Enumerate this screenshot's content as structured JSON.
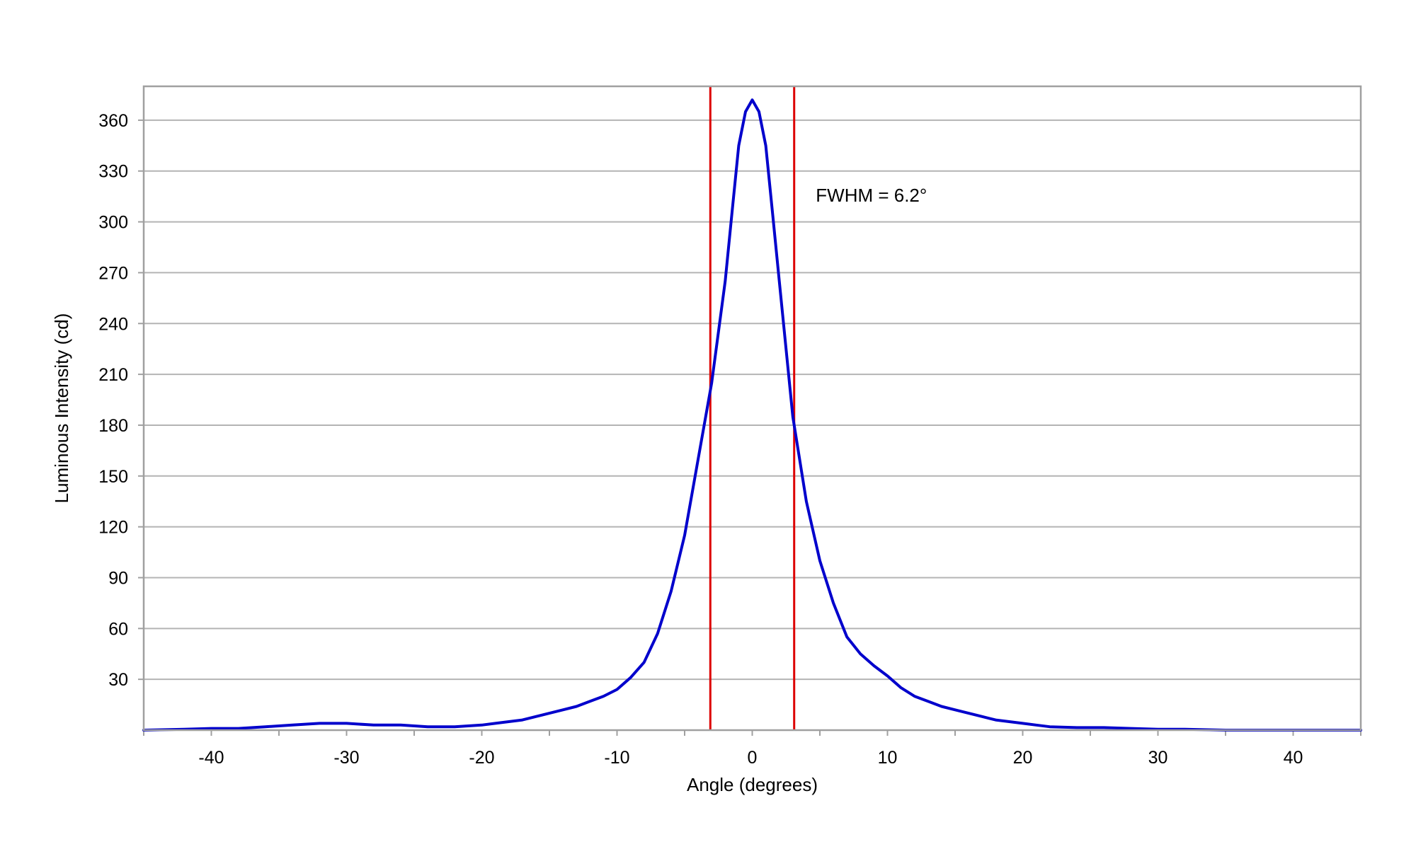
{
  "chart_data": {
    "type": "line",
    "title": "",
    "xlabel": "Angle (degrees)",
    "ylabel": "Luminous Intensity (cd)",
    "xlim": [
      -45,
      45
    ],
    "ylim": [
      0,
      380
    ],
    "xticks": [
      -40,
      -30,
      -20,
      -10,
      0,
      10,
      20,
      30,
      40
    ],
    "yticks": [
      30,
      60,
      90,
      120,
      150,
      180,
      210,
      240,
      270,
      300,
      330,
      360
    ],
    "grid": "horizontal",
    "legend": "none",
    "colors": {
      "curve": "#0000cc",
      "markers": "#dd0000",
      "grid": "#b4b4b4",
      "frame": "#a0a0a0"
    },
    "series": [
      {
        "x": [
          -45,
          -42,
          -40,
          -38,
          -36,
          -34,
          -32,
          -30,
          -28,
          -26,
          -24,
          -22,
          -20,
          -19,
          -18,
          -17,
          -16,
          -15,
          -14,
          -13,
          -12,
          -11,
          -10,
          -9,
          -8,
          -7,
          -6,
          -5,
          -4,
          -3,
          -2,
          -1.5,
          -1,
          -0.5,
          0,
          0.5,
          1,
          1.5,
          2,
          3,
          4,
          5,
          6,
          7,
          8,
          9,
          10,
          11,
          12,
          13,
          14,
          15,
          16,
          17,
          18,
          19,
          20,
          21,
          22,
          24,
          26,
          28,
          30,
          32,
          35,
          38,
          40,
          42,
          45
        ],
        "y": [
          0,
          0.5,
          1,
          1,
          2,
          3,
          4,
          4,
          3,
          3,
          2,
          2,
          3,
          4,
          5,
          6,
          8,
          10,
          12,
          14,
          17,
          20,
          24,
          31,
          40,
          57,
          82,
          115,
          160,
          205,
          265,
          305,
          345,
          365,
          372,
          365,
          345,
          305,
          265,
          185,
          135,
          100,
          75,
          55,
          45,
          38,
          32,
          25,
          20,
          17,
          14,
          12,
          10,
          8,
          6,
          5,
          4,
          3,
          2,
          1.5,
          1.5,
          1,
          0.5,
          0.5,
          0,
          0,
          0,
          0,
          0
        ]
      }
    ],
    "vlines": [
      -3.1,
      3.1
    ],
    "annotation": {
      "text": "FWHM = 6.2°",
      "x": 4.7,
      "y": 312
    }
  }
}
